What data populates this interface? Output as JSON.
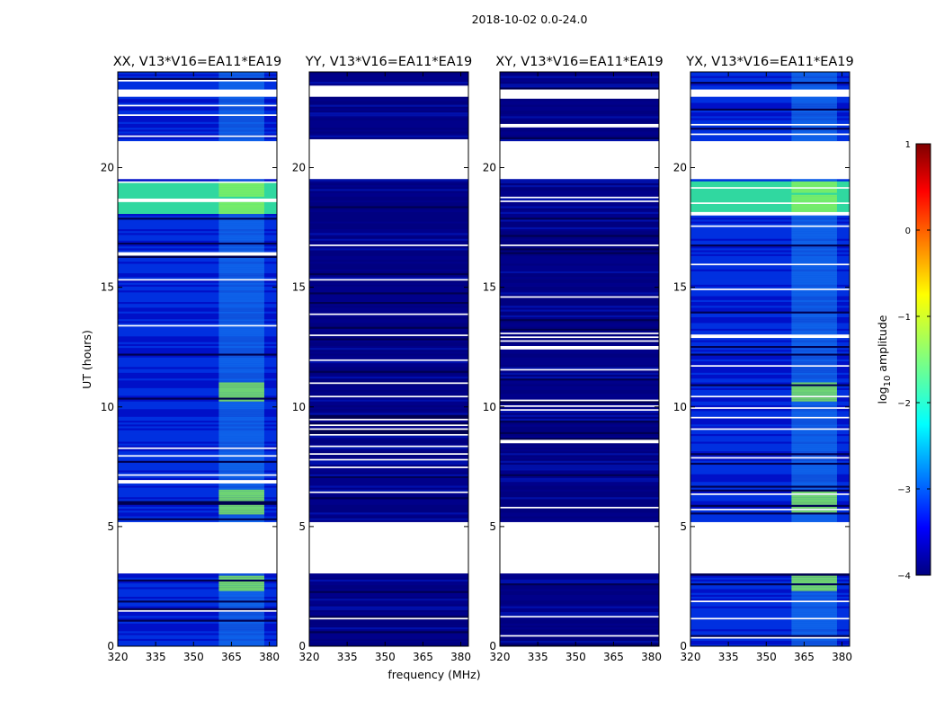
{
  "figure": {
    "suptitle": "2018-10-02 0.0-24.0",
    "xlabel": "frequency (MHz)",
    "ylabel": "UT (hours)"
  },
  "colorbar": {
    "label_prefix": "log",
    "label_sub": "10",
    "label_suffix": " amplitude",
    "range": [
      -4,
      1
    ],
    "ticks": [
      -4,
      -3,
      -2,
      -1,
      0,
      1
    ],
    "tick_labels": [
      "−4",
      "−3",
      "−2",
      "−1",
      "0",
      "1"
    ],
    "colormap": "jet",
    "stops": [
      "#00007f",
      "#0000ff",
      "#00ffff",
      "#ffff00",
      "#ff0000",
      "#7f0000"
    ],
    "stop_positions": [
      0,
      0.11,
      0.35,
      0.65,
      0.89,
      1
    ]
  },
  "chart_data": {
    "type": "heatmap",
    "x_range": [
      320,
      383
    ],
    "y_range": [
      0,
      24
    ],
    "x_ticks": [
      320,
      335,
      350,
      365,
      380
    ],
    "x_tick_labels": [
      "320",
      "335",
      "350",
      "365",
      "380"
    ],
    "y_ticks": [
      0,
      5,
      10,
      15,
      20
    ],
    "y_tick_labels": [
      "0",
      "5",
      "10",
      "15",
      "20"
    ],
    "missing_data_intervals_hours": [
      [
        3.0,
        5.2
      ],
      [
        19.5,
        21.1
      ],
      [
        22.9,
        23.2
      ]
    ],
    "rfi_band_MHz": [
      360,
      378
    ],
    "panels": [
      {
        "title": "XX, V13*V16=EA11*EA19",
        "level": "high",
        "bright_intervals_hours": [
          [
            18.0,
            19.4
          ],
          [
            10.2,
            11.0
          ],
          [
            5.5,
            6.5
          ],
          [
            2.3,
            2.9
          ]
        ]
      },
      {
        "title": "YY, V13*V16=EA11*EA19",
        "level": "low",
        "bright_intervals_hours": []
      },
      {
        "title": "XY, V13*V16=EA11*EA19",
        "level": "low",
        "bright_intervals_hours": []
      },
      {
        "title": "YX, V13*V16=EA11*EA19",
        "level": "high",
        "bright_intervals_hours": [
          [
            18.0,
            19.4
          ],
          [
            10.2,
            11.0
          ],
          [
            5.5,
            6.5
          ],
          [
            2.3,
            2.9
          ]
        ]
      }
    ]
  }
}
